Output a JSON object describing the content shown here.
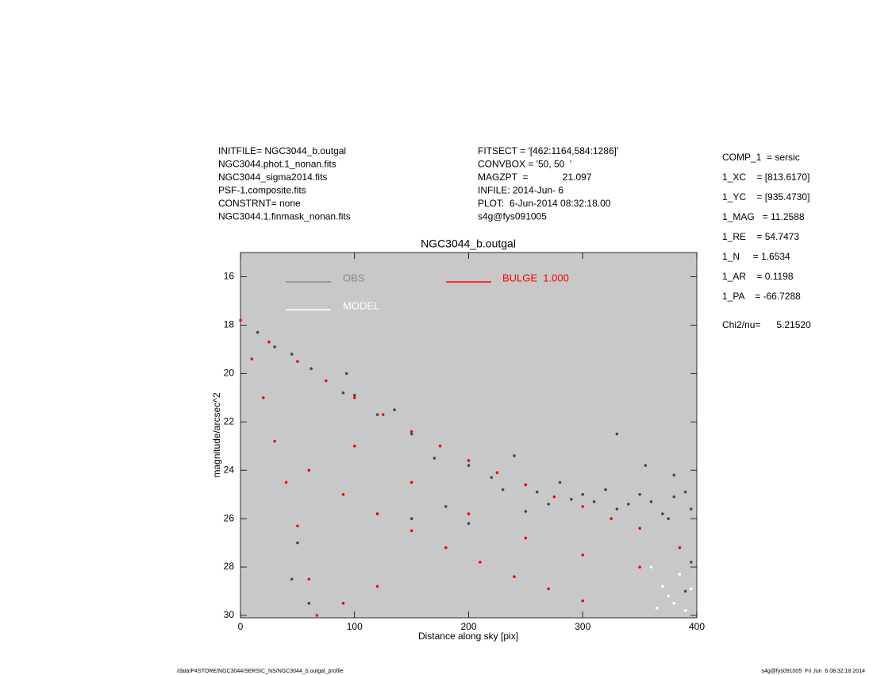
{
  "chart_data": {
    "type": "scatter",
    "title": "NGC3044_b.outgal",
    "x_label": "Distance along sky [pix]",
    "y_label": "magnitude/arcsec^2",
    "xlim": [
      0,
      400
    ],
    "ylim": [
      30.1,
      15
    ],
    "xticks": [
      0,
      100,
      200,
      300,
      400
    ],
    "yticks": [
      16,
      18,
      20,
      22,
      24,
      26,
      28,
      30
    ],
    "legend_label": "BULGE  1.000",
    "info_left": [
      "INITFILE= NGC3044_b.outgal",
      "NGC3044.phot.1_nonan.fits",
      "NGC3044_sigma2014.fits",
      "PSF-1.composite.fits",
      "CONSTRNT= none",
      "NGC3044.1.finmask_nonan.fits"
    ],
    "info_center": [
      "FITSECT = '[462:1164,584:1286]'",
      "CONVBOX = '50, 50  '",
      "MAGZPT  =             21.097",
      "INFILE: 2014-Jun- 6",
      "PLOT:  6-Jun-2014 08:32:18.00",
      "s4g@fys091005"
    ],
    "params": [
      "COMP_1  = sersic",
      "1_XC    = [813.6170]",
      "1_YC    = [935.4730]",
      "1_MAG   = 11.2588",
      "1_RE    = 54.7473",
      "1_N     = 1.6534",
      "1_AR    = 0.1198",
      "1_PA    = -66.7288"
    ],
    "chi2": "Chi2/nu=      5.21520",
    "footer_left": "/data/P4STORE/NGC3044/SERSIC_NS/NGC3044_b.outgal_profile",
    "footer_right": "s4g@fys091005  Fri Jun  6 08:32:18 2014",
    "series": [
      {
        "name": "OBS",
        "color": "#4a4a4a",
        "legend_color": "#8a8a8a",
        "x": [
          15,
          30,
          45,
          62,
          90,
          93,
          100,
          120,
          135,
          150,
          170,
          200,
          220,
          230,
          240,
          260,
          270,
          280,
          290,
          300,
          310,
          320,
          330,
          340,
          350,
          360,
          370,
          380,
          390,
          395,
          330,
          355,
          380,
          375,
          395,
          390,
          50,
          45,
          60,
          120,
          150,
          200,
          180,
          250
        ],
        "y": [
          18.3,
          18.9,
          19.2,
          19.8,
          20.8,
          20.0,
          20.9,
          21.7,
          21.5,
          22.5,
          23.5,
          23.8,
          24.3,
          24.8,
          23.4,
          24.9,
          25.4,
          24.5,
          25.2,
          25.0,
          25.3,
          24.8,
          25.6,
          25.4,
          25.0,
          25.3,
          25.8,
          25.1,
          24.9,
          25.6,
          22.5,
          23.8,
          24.2,
          26.0,
          27.8,
          29.0,
          27.0,
          28.5,
          29.5,
          25.8,
          26.0,
          26.2,
          25.5,
          25.7
        ]
      },
      {
        "name": "MODEL",
        "color": "#ffffff",
        "legend_color": "#ffffff",
        "x": [
          360,
          370,
          380,
          385,
          390,
          375,
          395,
          365
        ],
        "y": [
          28.0,
          28.8,
          29.5,
          28.3,
          29.8,
          29.2,
          28.9,
          29.7
        ]
      },
      {
        "name": "BULGE",
        "color": "#ff0000",
        "legend_color": "#ff0000",
        "x": [
          0,
          25,
          50,
          75,
          100,
          125,
          150,
          175,
          200,
          225,
          250,
          275,
          300,
          325,
          350,
          385,
          10,
          20,
          30,
          40,
          50,
          60,
          67,
          60,
          90,
          120,
          150,
          180,
          210,
          240,
          270,
          300,
          100,
          150,
          200,
          250,
          300,
          350,
          120,
          90
        ],
        "y": [
          17.8,
          18.7,
          19.5,
          20.3,
          21.0,
          21.7,
          22.4,
          23.0,
          23.6,
          24.1,
          24.6,
          25.1,
          25.5,
          26.0,
          26.4,
          27.2,
          19.4,
          21.0,
          22.8,
          24.5,
          26.3,
          28.5,
          30.0,
          24.0,
          25.0,
          25.8,
          26.5,
          27.2,
          27.8,
          28.4,
          28.9,
          29.4,
          23.0,
          24.5,
          25.8,
          26.8,
          27.5,
          28.0,
          28.8,
          29.5
        ]
      }
    ]
  }
}
